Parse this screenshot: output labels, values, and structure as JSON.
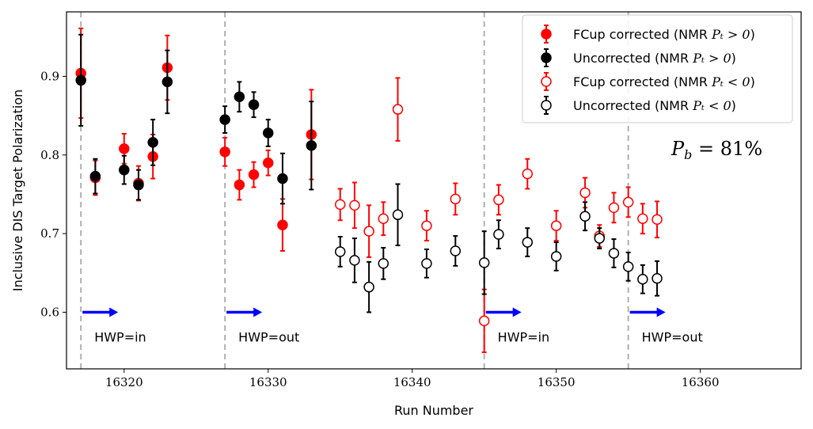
{
  "chart_data": {
    "type": "scatter",
    "xlabel": "Run Number",
    "ylabel": "Inclusive DIS Target Polarization",
    "xlim": [
      16316,
      16367
    ],
    "ylim": [
      0.528,
      0.982
    ],
    "xticks": [
      16320,
      16330,
      16340,
      16350,
      16360
    ],
    "yticks": [
      0.6,
      0.7,
      0.8,
      0.9
    ],
    "grid": false,
    "legend_position": "top-right",
    "annotation": {
      "prefix": "P",
      "subscript": "b",
      "text": " = 81%"
    },
    "colors": {
      "red": "#ff0000",
      "black": "#000000",
      "blue": "#0000ff",
      "gray": "#b0b0b0"
    },
    "hwp_lines": [
      16317,
      16327,
      16345,
      16355
    ],
    "hwp_labels": [
      {
        "x": 16317,
        "text": "HWP=in"
      },
      {
        "x": 16327,
        "text": "HWP=out"
      },
      {
        "x": 16345,
        "text": "HWP=in"
      },
      {
        "x": 16355,
        "text": "HWP=out"
      }
    ],
    "series": [
      {
        "name": "FCup corrected (NMR $P_t > 0$)",
        "legend_prefix": "FCup corrected (NMR ",
        "color": "#ff0000",
        "filled": true,
        "points": [
          {
            "x": 16317,
            "y": 0.904,
            "err": 0.057
          },
          {
            "x": 16318,
            "y": 0.771,
            "err": 0.022
          },
          {
            "x": 16320,
            "y": 0.808,
            "err": 0.019
          },
          {
            "x": 16321,
            "y": 0.764,
            "err": 0.022
          },
          {
            "x": 16322,
            "y": 0.798,
            "err": 0.028
          },
          {
            "x": 16323,
            "y": 0.911,
            "err": 0.041
          },
          {
            "x": 16327,
            "y": 0.804,
            "err": 0.018
          },
          {
            "x": 16328,
            "y": 0.762,
            "err": 0.019
          },
          {
            "x": 16329,
            "y": 0.775,
            "err": 0.016
          },
          {
            "x": 16330,
            "y": 0.79,
            "err": 0.016
          },
          {
            "x": 16331,
            "y": 0.711,
            "err": 0.033
          },
          {
            "x": 16333,
            "y": 0.826,
            "err": 0.057
          }
        ]
      },
      {
        "name": "Uncorrected (NMR $P_t > 0$)",
        "legend_prefix": "Uncorrected (NMR ",
        "color": "#000000",
        "filled": true,
        "points": [
          {
            "x": 16317,
            "y": 0.895,
            "err": 0.058
          },
          {
            "x": 16318,
            "y": 0.773,
            "err": 0.022
          },
          {
            "x": 16320,
            "y": 0.781,
            "err": 0.018
          },
          {
            "x": 16321,
            "y": 0.762,
            "err": 0.019
          },
          {
            "x": 16322,
            "y": 0.816,
            "err": 0.029
          },
          {
            "x": 16323,
            "y": 0.893,
            "err": 0.04
          },
          {
            "x": 16327,
            "y": 0.845,
            "err": 0.017
          },
          {
            "x": 16328,
            "y": 0.874,
            "err": 0.019
          },
          {
            "x": 16329,
            "y": 0.864,
            "err": 0.016
          },
          {
            "x": 16330,
            "y": 0.828,
            "err": 0.017
          },
          {
            "x": 16331,
            "y": 0.77,
            "err": 0.032
          },
          {
            "x": 16333,
            "y": 0.812,
            "err": 0.056
          }
        ]
      },
      {
        "name": "FCup corrected (NMR $P_t < 0$)",
        "legend_prefix": "FCup corrected (NMR ",
        "color": "#ff0000",
        "filled": false,
        "points": [
          {
            "x": 16335,
            "y": 0.737,
            "err": 0.02
          },
          {
            "x": 16336,
            "y": 0.736,
            "err": 0.029
          },
          {
            "x": 16337,
            "y": 0.703,
            "err": 0.033
          },
          {
            "x": 16338,
            "y": 0.719,
            "err": 0.021
          },
          {
            "x": 16339,
            "y": 0.858,
            "err": 0.04
          },
          {
            "x": 16341,
            "y": 0.71,
            "err": 0.019
          },
          {
            "x": 16343,
            "y": 0.744,
            "err": 0.02
          },
          {
            "x": 16345,
            "y": 0.589,
            "err": 0.04
          },
          {
            "x": 16346,
            "y": 0.743,
            "err": 0.019
          },
          {
            "x": 16348,
            "y": 0.776,
            "err": 0.019
          },
          {
            "x": 16350,
            "y": 0.71,
            "err": 0.019
          },
          {
            "x": 16352,
            "y": 0.752,
            "err": 0.019
          },
          {
            "x": 16353,
            "y": 0.697,
            "err": 0.014
          },
          {
            "x": 16354,
            "y": 0.733,
            "err": 0.019
          },
          {
            "x": 16355,
            "y": 0.74,
            "err": 0.019
          },
          {
            "x": 16356,
            "y": 0.719,
            "err": 0.019
          },
          {
            "x": 16357,
            "y": 0.718,
            "err": 0.023
          }
        ]
      },
      {
        "name": "Uncorrected (NMR $P_t < 0$)",
        "legend_prefix": "Uncorrected (NMR ",
        "color": "#000000",
        "filled": false,
        "points": [
          {
            "x": 16335,
            "y": 0.677,
            "err": 0.019
          },
          {
            "x": 16336,
            "y": 0.666,
            "err": 0.028
          },
          {
            "x": 16337,
            "y": 0.632,
            "err": 0.032
          },
          {
            "x": 16338,
            "y": 0.662,
            "err": 0.02
          },
          {
            "x": 16339,
            "y": 0.724,
            "err": 0.039
          },
          {
            "x": 16341,
            "y": 0.662,
            "err": 0.018
          },
          {
            "x": 16343,
            "y": 0.678,
            "err": 0.019
          },
          {
            "x": 16345,
            "y": 0.663,
            "err": 0.04
          },
          {
            "x": 16346,
            "y": 0.699,
            "err": 0.018
          },
          {
            "x": 16348,
            "y": 0.689,
            "err": 0.018
          },
          {
            "x": 16350,
            "y": 0.671,
            "err": 0.018
          },
          {
            "x": 16352,
            "y": 0.722,
            "err": 0.018
          },
          {
            "x": 16353,
            "y": 0.694,
            "err": 0.013
          },
          {
            "x": 16354,
            "y": 0.675,
            "err": 0.018
          },
          {
            "x": 16355,
            "y": 0.658,
            "err": 0.018
          },
          {
            "x": 16356,
            "y": 0.642,
            "err": 0.018
          },
          {
            "x": 16357,
            "y": 0.643,
            "err": 0.022
          }
        ]
      }
    ]
  }
}
